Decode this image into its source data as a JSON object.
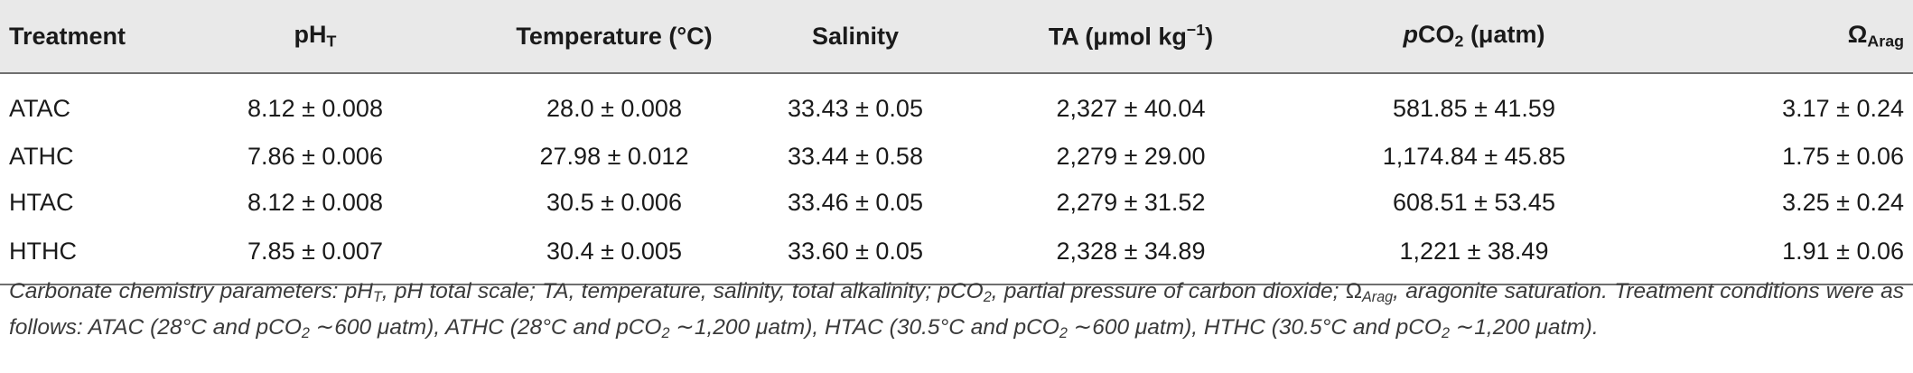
{
  "table": {
    "headers": [
      {
        "text": "Treatment"
      },
      {
        "text": "pH",
        "sub": "T"
      },
      {
        "text": "Temperature (°C)"
      },
      {
        "text": "Salinity"
      },
      {
        "text": "TA (μmol kg",
        "sup": "−1",
        "tail": ")"
      },
      {
        "italic": "p",
        "text": "CO",
        "sub": "2",
        "tail": " (μatm)"
      },
      {
        "text": "Ω",
        "sub": "Arag"
      }
    ],
    "rows": [
      [
        "ATAC",
        "8.12 ± 0.008",
        "28.0 ± 0.008",
        "33.43 ± 0.05",
        "2,327 ± 40.04",
        "581.85 ± 41.59",
        "3.17 ± 0.24"
      ],
      [
        "ATHC",
        "7.86 ± 0.006",
        "27.98 ± 0.012",
        "33.44 ± 0.58",
        "2,279 ± 29.00",
        "1,174.84 ± 45.85",
        "1.75 ± 0.06"
      ],
      [
        "HTAC",
        "8.12 ± 0.008",
        "30.5 ± 0.006",
        "33.46 ± 0.05",
        "2,279 ± 31.52",
        "608.51 ± 53.45",
        "3.25 ± 0.24"
      ],
      [
        "HTHC",
        "7.85 ± 0.007",
        "30.4 ± 0.005",
        "33.60 ± 0.05",
        "2,328 ± 34.89",
        "1,221 ± 38.49",
        "1.91 ± 0.06"
      ]
    ]
  },
  "caption": {
    "parts": [
      "Carbonate chemistry parameters: pH",
      "T",
      ", pH total scale; TA, temperature, salinity, total alkalinity; pCO",
      "2",
      ", partial pressure of carbon dioxide; ",
      "Ω",
      "Arag",
      ", aragonite saturation. Treatment conditions were as follows: ATAC (28°C and pCO",
      "2",
      " ∼600 μatm), ATHC (28°C and pCO",
      "2",
      " ∼1,200 μatm), HTAC (30.5°C and pCO",
      "2",
      " ∼600 μatm), HTHC (30.5°C and pCO",
      "2",
      " ∼1,200 μatm)."
    ]
  }
}
